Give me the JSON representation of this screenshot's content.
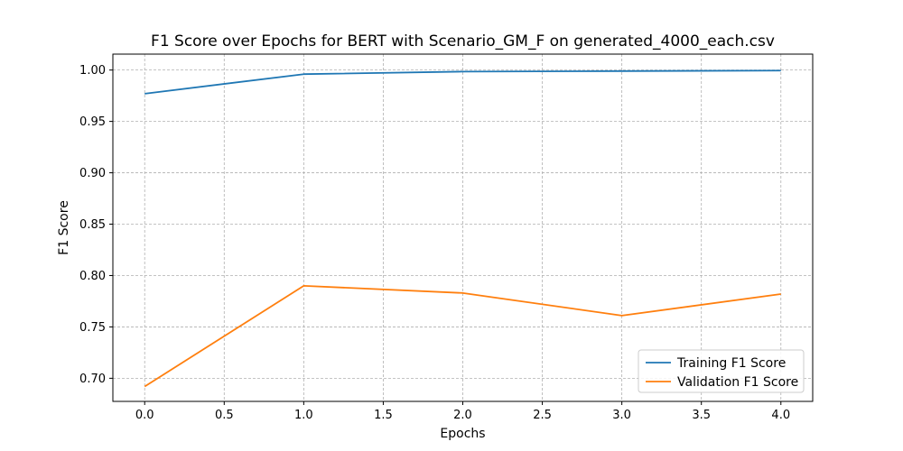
{
  "chart_data": {
    "type": "line",
    "title": "F1 Score over Epochs for BERT with Scenario_GM_F on generated_4000_each.csv",
    "xlabel": "Epochs",
    "ylabel": "F1 Score",
    "x": [
      0,
      1,
      2,
      3,
      4
    ],
    "xlim": [
      -0.2,
      4.2
    ],
    "ylim": [
      0.6775,
      1.0155
    ],
    "xticks": [
      0.0,
      0.5,
      1.0,
      1.5,
      2.0,
      2.5,
      3.0,
      3.5,
      4.0
    ],
    "xtick_labels": [
      "0.0",
      "0.5",
      "1.0",
      "1.5",
      "2.0",
      "2.5",
      "3.0",
      "3.5",
      "4.0"
    ],
    "yticks": [
      0.7,
      0.75,
      0.8,
      0.85,
      0.9,
      0.95,
      1.0
    ],
    "ytick_labels": [
      "0.70",
      "0.75",
      "0.80",
      "0.85",
      "0.90",
      "0.95",
      "1.00"
    ],
    "grid": true,
    "legend_position": "lower-right",
    "series": [
      {
        "name": "Training F1 Score",
        "color": "#1f77b4",
        "values": [
          0.977,
          0.996,
          0.9985,
          0.999,
          0.9995
        ]
      },
      {
        "name": "Validation F1 Score",
        "color": "#ff7f0e",
        "values": [
          0.692,
          0.79,
          0.783,
          0.761,
          0.782
        ]
      }
    ]
  }
}
